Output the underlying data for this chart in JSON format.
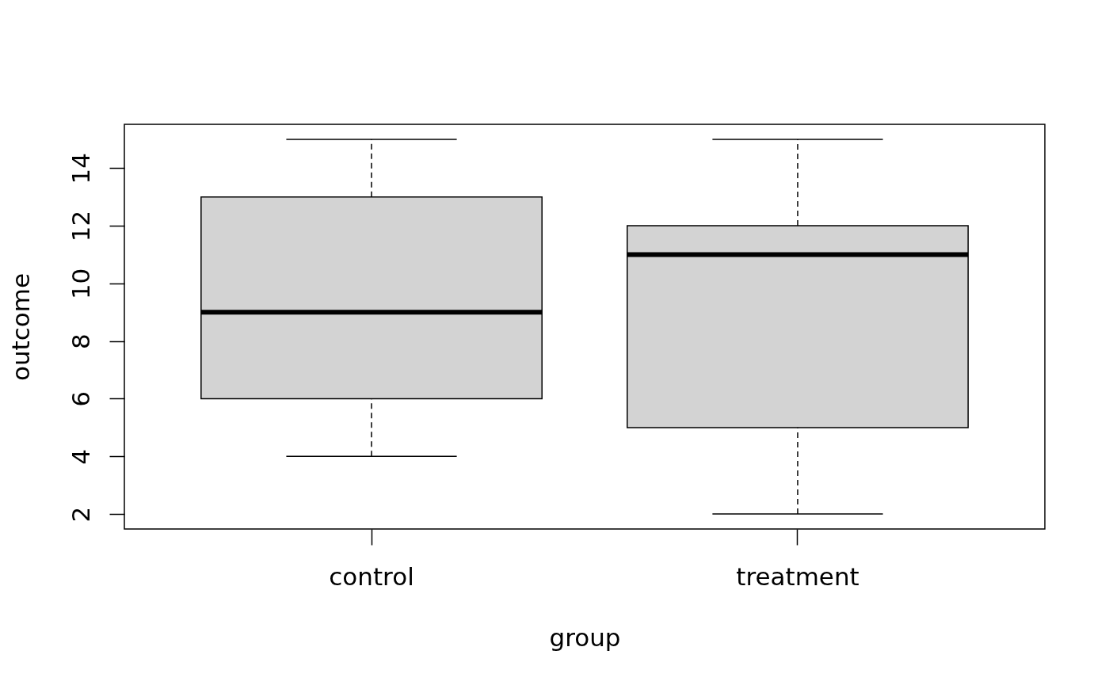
{
  "chart_data": {
    "type": "box",
    "categories": [
      "control",
      "treatment"
    ],
    "boxes": [
      {
        "low": 4,
        "q1": 6,
        "median": 9,
        "q3": 13,
        "high": 15
      },
      {
        "low": 2,
        "q1": 5,
        "median": 11,
        "q3": 12,
        "high": 15
      }
    ],
    "color": "#d3d3d3",
    "xlabel": "group",
    "ylabel": "outcome",
    "ylim": [
      1.48,
      15.52
    ],
    "yticks": [
      2,
      4,
      6,
      8,
      10,
      12,
      14
    ],
    "grid": false
  }
}
